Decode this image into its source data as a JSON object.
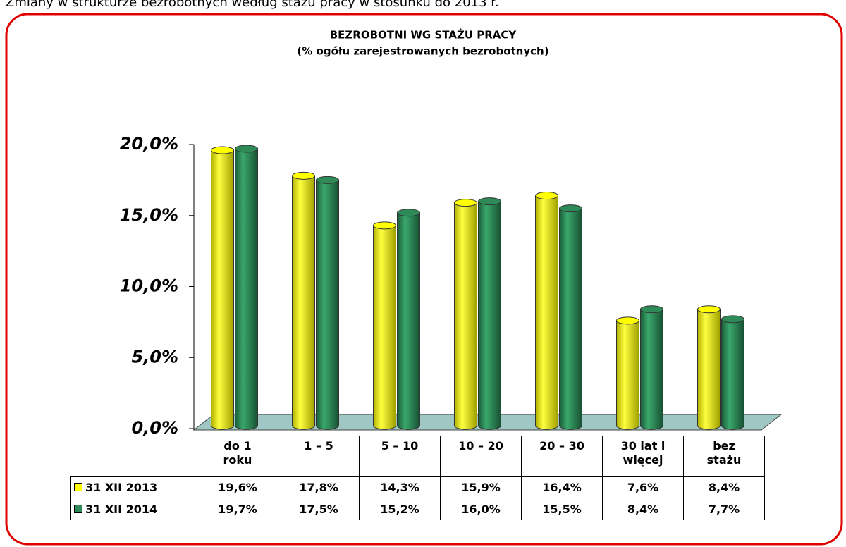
{
  "caption": "Zmiany w strukturze bezrobotnych według stażu pracy w stosunku do 2013 r.",
  "chart_data": {
    "type": "bar",
    "title": "BEZROBOTNI WG STAŻU PRACY",
    "subtitle": "(% ogółu zarejestrowanych bezrobotnych)",
    "categories": [
      "do 1 roku",
      "1 – 5",
      "5 – 10",
      "10 – 20",
      "20 – 30",
      "30 lat i więcej",
      "bez stażu"
    ],
    "series": [
      {
        "name": "31 XII 2013",
        "color": "#ffff00",
        "values": [
          19.6,
          17.8,
          14.3,
          15.9,
          16.4,
          7.6,
          8.4
        ],
        "value_labels": [
          "19,6%",
          "17,8%",
          "14,3%",
          "15,9%",
          "16,4%",
          "7,6%",
          "8,4%"
        ]
      },
      {
        "name": "31 XII 2014",
        "color": "#2e8b57",
        "values": [
          19.7,
          17.5,
          15.2,
          16.0,
          15.5,
          8.4,
          7.7
        ],
        "value_labels": [
          "19,7%",
          "17,5%",
          "15,2%",
          "16,0%",
          "15,5%",
          "8,4%",
          "7,7%"
        ]
      }
    ],
    "ylim": [
      0,
      20
    ],
    "yticks": [
      {
        "value": 0,
        "label": "0,0%"
      },
      {
        "value": 5,
        "label": "5,0%"
      },
      {
        "value": 10,
        "label": "10,0%"
      },
      {
        "value": 15,
        "label": "15,0%"
      },
      {
        "value": 20,
        "label": "20,0%"
      }
    ]
  }
}
